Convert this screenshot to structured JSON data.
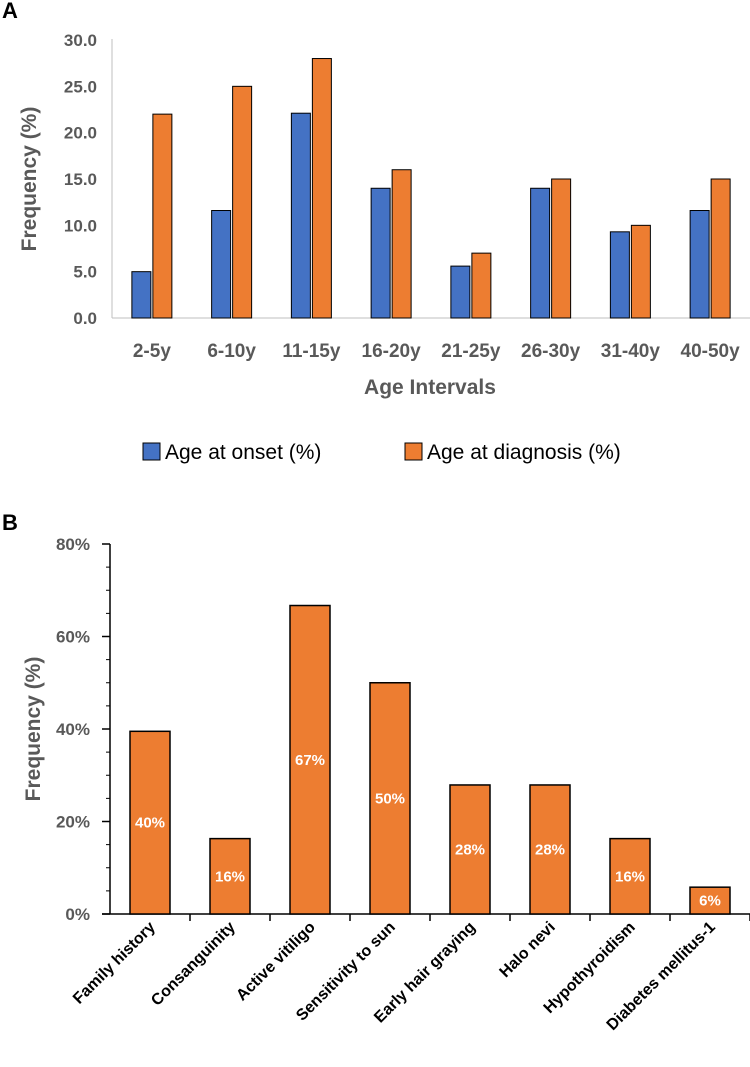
{
  "chart_data": [
    {
      "panel": "A",
      "type": "bar",
      "title": "",
      "xlabel": "Age Intervals",
      "ylabel": "Frequency (%)",
      "ylim": [
        0,
        30
      ],
      "yticks": [
        "0.0",
        "5.0",
        "10.0",
        "15.0",
        "20.0",
        "25.0",
        "30.0"
      ],
      "categories": [
        "2-5y",
        "6-10y",
        "11-15y",
        "16-20y",
        "21-25y",
        "26-30y",
        "31-40y",
        "40-50y"
      ],
      "series": [
        {
          "name": "Age at onset (%)",
          "color": "#4472C4",
          "values": [
            5.0,
            11.6,
            22.1,
            14.0,
            5.6,
            14.0,
            9.3,
            11.6
          ]
        },
        {
          "name": "Age at diagnosis (%)",
          "color": "#ED7D31",
          "values": [
            22.0,
            25.0,
            28.0,
            16.0,
            7.0,
            15.0,
            10.0,
            15.0
          ]
        }
      ],
      "legend_position": "bottom"
    },
    {
      "panel": "B",
      "type": "bar",
      "title": "",
      "xlabel": "",
      "ylabel": "Frequency (%)",
      "ylim": [
        0,
        80
      ],
      "yticks": [
        "0%",
        "20%",
        "40%",
        "60%",
        "80%"
      ],
      "categories": [
        "Family history",
        "Consanguinity",
        "Active vitiligo",
        "Sensitivity to sun",
        "Early hair graying",
        "Halo nevi",
        "Hypothyroidism",
        "Diabetes mellitus-1"
      ],
      "series": [
        {
          "name": "Frequency",
          "color": "#ED7D31",
          "values": [
            39.5,
            16.3,
            66.7,
            50.0,
            27.9,
            27.9,
            16.3,
            5.8
          ],
          "labels": [
            "40%",
            "16%",
            "67%",
            "50%",
            "28%",
            "28%",
            "16%",
            "6%"
          ]
        }
      ]
    }
  ]
}
